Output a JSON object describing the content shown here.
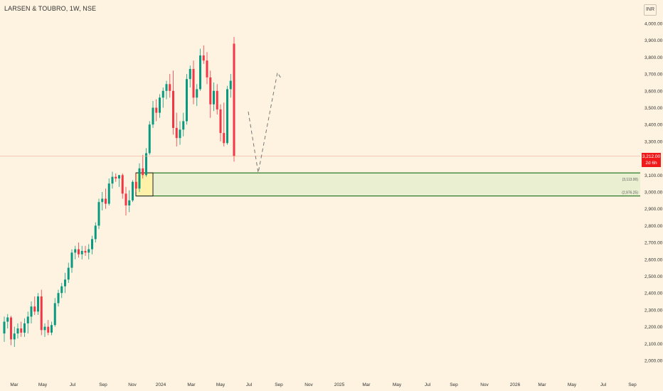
{
  "header": {
    "symbol_title": "LARSEN & TOUBRO, 1W, NSE",
    "currency_button": "INR"
  },
  "price_tag": {
    "price": "3,212.00",
    "countdown": "2d 6h"
  },
  "zone": {
    "upper_label": "(3,113.00)",
    "lower_label": "(2,976.25)",
    "upper": 3113,
    "lower": 2976.25
  },
  "colors": {
    "up": "#089981",
    "down": "#f23645",
    "zone_line": "#2a7a2a",
    "zone_fill": "#ebefd2",
    "box_fill": "#fff1a8",
    "price_line": "#f2b7a6",
    "background": "#fdf3e0"
  },
  "chart_data": {
    "type": "candlestick",
    "title": "LARSEN & TOUBRO, 1W, NSE",
    "y_axis": {
      "range": [
        1935,
        4140
      ],
      "ticks": [
        "4,000.00",
        "3,900.00",
        "3,800.00",
        "3,700.00",
        "3,600.00",
        "3,500.00",
        "3,400.00",
        "3,300.00",
        "3,100.00",
        "3,000.00",
        "2,900.00",
        "2,800.00",
        "2,700.00",
        "2,600.00",
        "2,500.00",
        "2,400.00",
        "2,300.00",
        "2,200.00",
        "2,100.00",
        "2,000.00"
      ]
    },
    "x_axis": {
      "ticks": [
        "Mar",
        "May",
        "Jul",
        "Sep",
        "Nov",
        "2024",
        "Mar",
        "May",
        "Jul",
        "Sep",
        "Nov",
        "2025",
        "Mar",
        "May",
        "Jul",
        "Sep",
        "Nov",
        "2026",
        "Mar",
        "May",
        "Jul",
        "Sep"
      ]
    },
    "last_price": 3212,
    "candles": [
      {
        "o": 2160,
        "h": 2260,
        "l": 2110,
        "c": 2230
      },
      {
        "o": 2230,
        "h": 2275,
        "l": 2190,
        "c": 2255
      },
      {
        "o": 2255,
        "h": 2265,
        "l": 2090,
        "c": 2125
      },
      {
        "o": 2125,
        "h": 2200,
        "l": 2080,
        "c": 2160
      },
      {
        "o": 2160,
        "h": 2220,
        "l": 2130,
        "c": 2190
      },
      {
        "o": 2190,
        "h": 2230,
        "l": 2140,
        "c": 2165
      },
      {
        "o": 2165,
        "h": 2250,
        "l": 2140,
        "c": 2220
      },
      {
        "o": 2220,
        "h": 2290,
        "l": 2160,
        "c": 2260
      },
      {
        "o": 2260,
        "h": 2350,
        "l": 2220,
        "c": 2320
      },
      {
        "o": 2320,
        "h": 2380,
        "l": 2270,
        "c": 2290
      },
      {
        "o": 2290,
        "h": 2400,
        "l": 2270,
        "c": 2380
      },
      {
        "o": 2380,
        "h": 2420,
        "l": 2150,
        "c": 2180
      },
      {
        "o": 2180,
        "h": 2220,
        "l": 2140,
        "c": 2200
      },
      {
        "o": 2200,
        "h": 2240,
        "l": 2150,
        "c": 2165
      },
      {
        "o": 2165,
        "h": 2230,
        "l": 2150,
        "c": 2210
      },
      {
        "o": 2210,
        "h": 2370,
        "l": 2200,
        "c": 2340
      },
      {
        "o": 2340,
        "h": 2420,
        "l": 2320,
        "c": 2400
      },
      {
        "o": 2400,
        "h": 2460,
        "l": 2370,
        "c": 2440
      },
      {
        "o": 2440,
        "h": 2520,
        "l": 2400,
        "c": 2480
      },
      {
        "o": 2480,
        "h": 2580,
        "l": 2460,
        "c": 2550
      },
      {
        "o": 2550,
        "h": 2660,
        "l": 2520,
        "c": 2640
      },
      {
        "o": 2640,
        "h": 2680,
        "l": 2600,
        "c": 2660
      },
      {
        "o": 2660,
        "h": 2700,
        "l": 2610,
        "c": 2630
      },
      {
        "o": 2630,
        "h": 2680,
        "l": 2600,
        "c": 2650
      },
      {
        "o": 2650,
        "h": 2680,
        "l": 2620,
        "c": 2640
      },
      {
        "o": 2640,
        "h": 2690,
        "l": 2600,
        "c": 2660
      },
      {
        "o": 2660,
        "h": 2740,
        "l": 2630,
        "c": 2720
      },
      {
        "o": 2720,
        "h": 2820,
        "l": 2700,
        "c": 2800
      },
      {
        "o": 2800,
        "h": 2960,
        "l": 2780,
        "c": 2940
      },
      {
        "o": 2940,
        "h": 3000,
        "l": 2890,
        "c": 2960
      },
      {
        "o": 2960,
        "h": 3020,
        "l": 2900,
        "c": 2930
      },
      {
        "o": 2930,
        "h": 3080,
        "l": 2920,
        "c": 3050
      },
      {
        "o": 3050,
        "h": 3120,
        "l": 3020,
        "c": 3090
      },
      {
        "o": 3090,
        "h": 3110,
        "l": 3060,
        "c": 3080
      },
      {
        "o": 3080,
        "h": 3100,
        "l": 3030,
        "c": 3100
      },
      {
        "o": 3100,
        "h": 3110,
        "l": 2960,
        "c": 2990
      },
      {
        "o": 2990,
        "h": 3030,
        "l": 2860,
        "c": 2920
      },
      {
        "o": 2920,
        "h": 3010,
        "l": 2880,
        "c": 2950
      },
      {
        "o": 2950,
        "h": 3070,
        "l": 2940,
        "c": 3060
      },
      {
        "o": 3060,
        "h": 3110,
        "l": 3000,
        "c": 3020
      },
      {
        "o": 3020,
        "h": 3170,
        "l": 3000,
        "c": 3140
      },
      {
        "o": 3140,
        "h": 3220,
        "l": 3080,
        "c": 3100
      },
      {
        "o": 3100,
        "h": 3260,
        "l": 3090,
        "c": 3230
      },
      {
        "o": 3230,
        "h": 3420,
        "l": 3220,
        "c": 3400
      },
      {
        "o": 3400,
        "h": 3540,
        "l": 3380,
        "c": 3500
      },
      {
        "o": 3500,
        "h": 3550,
        "l": 3420,
        "c": 3470
      },
      {
        "o": 3470,
        "h": 3580,
        "l": 3440,
        "c": 3560
      },
      {
        "o": 3560,
        "h": 3620,
        "l": 3500,
        "c": 3600
      },
      {
        "o": 3600,
        "h": 3660,
        "l": 3550,
        "c": 3640
      },
      {
        "o": 3640,
        "h": 3700,
        "l": 3560,
        "c": 3600
      },
      {
        "o": 3600,
        "h": 3720,
        "l": 3340,
        "c": 3380
      },
      {
        "o": 3380,
        "h": 3470,
        "l": 3270,
        "c": 3320
      },
      {
        "o": 3320,
        "h": 3420,
        "l": 3280,
        "c": 3370
      },
      {
        "o": 3370,
        "h": 3470,
        "l": 3330,
        "c": 3420
      },
      {
        "o": 3420,
        "h": 3700,
        "l": 3400,
        "c": 3670
      },
      {
        "o": 3670,
        "h": 3750,
        "l": 3620,
        "c": 3730
      },
      {
        "o": 3730,
        "h": 3780,
        "l": 3520,
        "c": 3560
      },
      {
        "o": 3560,
        "h": 3640,
        "l": 3510,
        "c": 3610
      },
      {
        "o": 3610,
        "h": 3850,
        "l": 3600,
        "c": 3810
      },
      {
        "o": 3810,
        "h": 3870,
        "l": 3760,
        "c": 3780
      },
      {
        "o": 3780,
        "h": 3830,
        "l": 3640,
        "c": 3680
      },
      {
        "o": 3680,
        "h": 3720,
        "l": 3440,
        "c": 3520
      },
      {
        "o": 3520,
        "h": 3650,
        "l": 3480,
        "c": 3600
      },
      {
        "o": 3600,
        "h": 3640,
        "l": 3460,
        "c": 3490
      },
      {
        "o": 3490,
        "h": 3520,
        "l": 3300,
        "c": 3350
      },
      {
        "o": 3350,
        "h": 3530,
        "l": 3270,
        "c": 3290
      },
      {
        "o": 3290,
        "h": 3630,
        "l": 3280,
        "c": 3610
      },
      {
        "o": 3610,
        "h": 3700,
        "l": 3560,
        "c": 3660
      },
      {
        "o": 3880,
        "h": 3920,
        "l": 3180,
        "c": 3212
      }
    ]
  }
}
